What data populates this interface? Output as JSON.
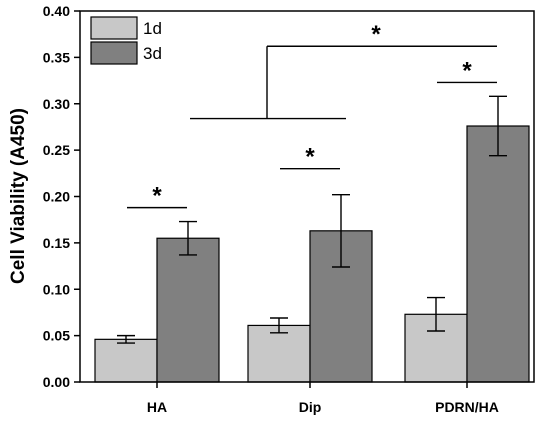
{
  "chart_data": {
    "type": "bar",
    "categories": [
      "HA",
      "Dip",
      "PDRN/HA"
    ],
    "series": [
      {
        "name": "1d",
        "values": [
          0.046,
          0.061,
          0.073
        ],
        "errors": [
          0.004,
          0.008,
          0.018
        ],
        "color": "#c8c8c8"
      },
      {
        "name": "3d",
        "values": [
          0.155,
          0.163,
          0.276
        ],
        "errors": [
          0.018,
          0.039,
          0.032
        ],
        "color": "#808080"
      }
    ],
    "title": "",
    "xlabel": "",
    "ylabel": "Cell Viability (A450)",
    "ylim": [
      0,
      0.4
    ],
    "yticks": [
      "0.00",
      "0.05",
      "0.10",
      "0.15",
      "0.20",
      "0.25",
      "0.30",
      "0.35",
      "0.40"
    ],
    "legend_position": "top-left",
    "significance": [
      {
        "label": "*",
        "y": 0.188,
        "between": [
          "HA 1d",
          "HA 3d"
        ]
      },
      {
        "label": "*",
        "y": 0.23,
        "between": [
          "Dip 1d",
          "Dip 3d"
        ]
      },
      {
        "label": "*",
        "y": 0.323,
        "between": [
          "PDRN/HA 1d",
          "PDRN/HA 3d"
        ]
      },
      {
        "label": "*",
        "y": 0.362,
        "between": [
          "HA + Dip",
          "PDRN/HA"
        ]
      }
    ]
  }
}
